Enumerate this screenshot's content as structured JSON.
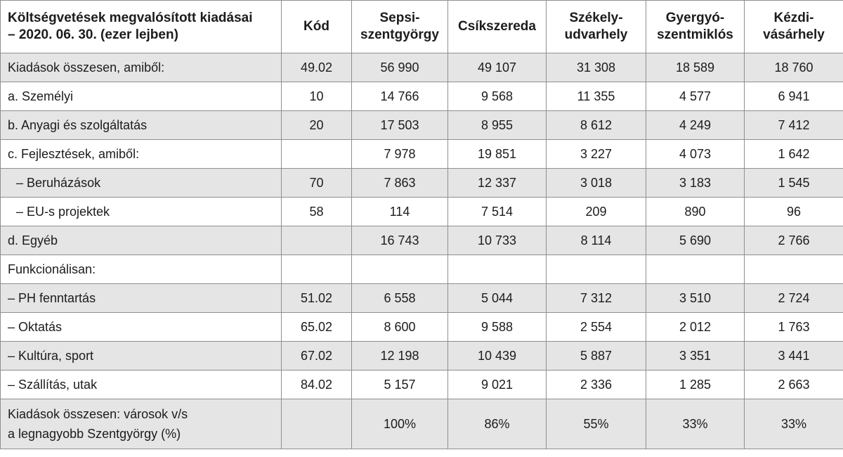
{
  "table": {
    "headers": [
      {
        "lines": [
          "Költségvetések megvalósított kiadásai",
          "– 2020. 06. 30. (ezer lejben)"
        ]
      },
      {
        "lines": [
          "Kód"
        ]
      },
      {
        "lines": [
          "Sepsi-",
          "szentgyörgy"
        ]
      },
      {
        "lines": [
          "Csíkszereda"
        ]
      },
      {
        "lines": [
          "Székely-",
          "udvarhely"
        ]
      },
      {
        "lines": [
          "Gyergyó-",
          "szentmiklós"
        ]
      },
      {
        "lines": [
          "Kézdi-",
          "vásárhely"
        ]
      }
    ],
    "rows": [
      {
        "label": [
          "Kiadások összesen, amiből:"
        ],
        "code": "49.02",
        "values": [
          "56 990",
          "49 107",
          "31 308",
          "18 589",
          "18 760"
        ]
      },
      {
        "label": [
          "a. Személyi"
        ],
        "code": "10",
        "values": [
          "14 766",
          "9 568",
          "11 355",
          "4 577",
          "6 941"
        ]
      },
      {
        "label": [
          "b. Anyagi és szolgáltatás"
        ],
        "code": "20",
        "values": [
          "17 503",
          "8 955",
          "8 612",
          "4 249",
          "7 412"
        ]
      },
      {
        "label": [
          "c. Fejlesztések, amiből:"
        ],
        "code": "",
        "values": [
          "7 978",
          "19 851",
          "3 227",
          "4 073",
          "1 642"
        ]
      },
      {
        "label": [
          "– Beruházások"
        ],
        "code": "70",
        "values": [
          "7 863",
          "12 337",
          "3 018",
          "3 183",
          "1 545"
        ],
        "indent": true
      },
      {
        "label": [
          "– EU-s projektek"
        ],
        "code": "58",
        "values": [
          "114",
          "7 514",
          "209",
          "890",
          "96"
        ],
        "indent": true
      },
      {
        "label": [
          "d. Egyéb"
        ],
        "code": "",
        "values": [
          "16 743",
          "10 733",
          "8 114",
          "5 690",
          "2 766"
        ]
      },
      {
        "label": [
          "Funkcionálisan:"
        ],
        "code": "",
        "values": [
          "",
          "",
          "",
          "",
          ""
        ]
      },
      {
        "label": [
          "– PH fenntartás"
        ],
        "code": "51.02",
        "values": [
          "6 558",
          "5 044",
          "7 312",
          "3 510",
          "2 724"
        ]
      },
      {
        "label": [
          "– Oktatás"
        ],
        "code": "65.02",
        "values": [
          "8 600",
          "9 588",
          "2 554",
          "2 012",
          "1 763"
        ]
      },
      {
        "label": [
          "– Kultúra, sport"
        ],
        "code": "67.02",
        "values": [
          "12 198",
          "10 439",
          "5 887",
          "3 351",
          "3 441"
        ]
      },
      {
        "label": [
          "– Szállítás, utak"
        ],
        "code": "84.02",
        "values": [
          "5 157",
          "9 021",
          "2 336",
          "1 285",
          "2 663"
        ]
      },
      {
        "label": [
          "Kiadások összesen: városok v/s",
          "a legnagyobb Szentgyörgy (%)"
        ],
        "code": "",
        "values": [
          "100%",
          "86%",
          "55%",
          "33%",
          "33%"
        ],
        "tall": true
      }
    ]
  }
}
